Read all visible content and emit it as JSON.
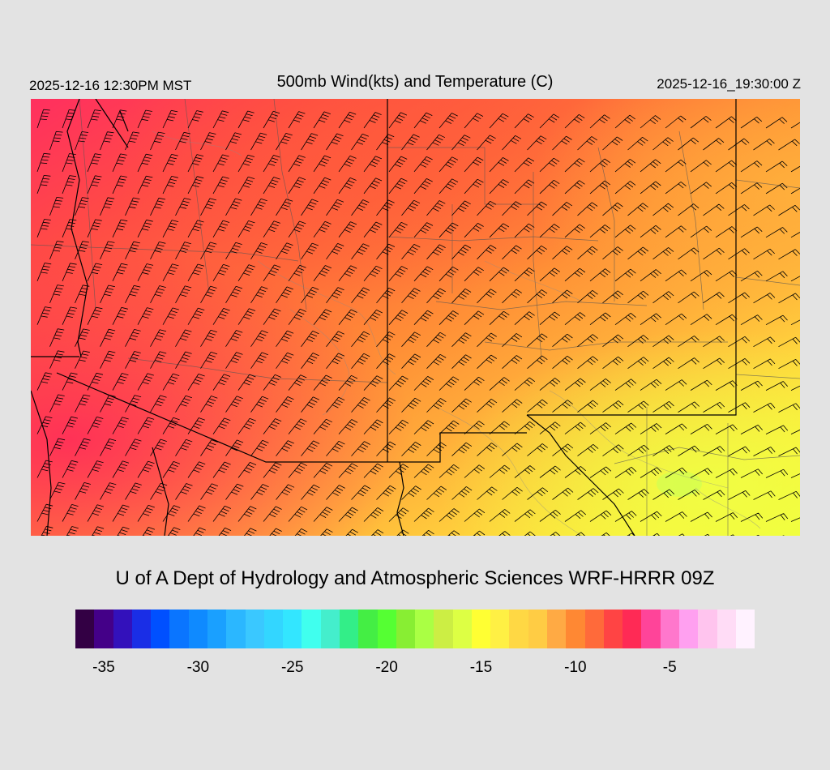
{
  "header": {
    "local_time": "2025-12-16 12:30PM MST",
    "title": "500mb Wind(kts) and Temperature (C)",
    "utc_time": "2025-12-16_19:30:00 Z"
  },
  "credit": "U of A Dept of Hydrology and Atmospheric Sciences WRF-HRRR 09Z",
  "map": {
    "field": "500mb temperature",
    "barb_symbol": "wind barbs",
    "temperature_gradient_colors": [
      "#ff2f5f",
      "#ff4a42",
      "#ff6a3a",
      "#ff8a36",
      "#ffa63a",
      "#ffc83c",
      "#ffe23a",
      "#fff63a",
      "#e6ff3e"
    ],
    "cool_colors_in_southwest": true,
    "warm_colors_in_southeast": true
  },
  "colorbar": {
    "colors": [
      "#330044",
      "#440088",
      "#3311bb",
      "#1a2ee6",
      "#0050ff",
      "#0a75ff",
      "#0f8aff",
      "#1aa0ff",
      "#2bb7ff",
      "#3ac8ff",
      "#33d6ff",
      "#33e6ff",
      "#40ffee",
      "#44eecc",
      "#33ee88",
      "#44ee44",
      "#55ff33",
      "#88ee33",
      "#aaff44",
      "#ccee44",
      "#ddff44",
      "#ffff33",
      "#fff044",
      "#ffd844",
      "#ffcc44",
      "#ffaa44",
      "#ff8833",
      "#ff6a3a",
      "#ff4444",
      "#ff2a55",
      "#ff4499",
      "#ff77cc",
      "#ffa0f0",
      "#ffc4ee",
      "#ffdcf6",
      "#fff2ff"
    ],
    "tick_labels": [
      "-35",
      "-30",
      "-25",
      "-20",
      "-15",
      "-10",
      "-5"
    ],
    "tick_values": [
      -35,
      -30,
      -25,
      -20,
      -15,
      -10,
      -5
    ],
    "min": -36,
    "max": -1
  }
}
